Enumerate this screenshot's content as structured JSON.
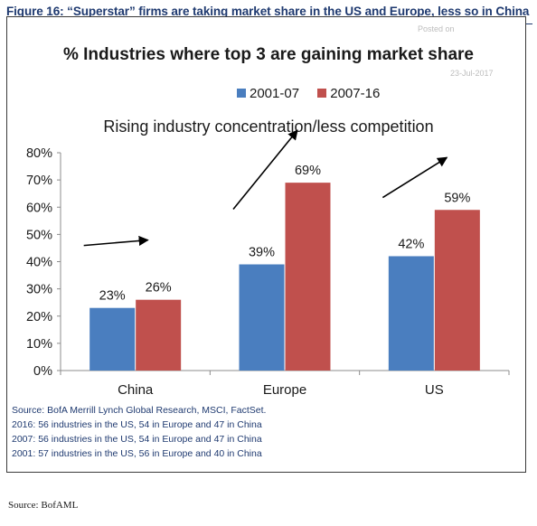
{
  "figure_title": "Figure 16: “Superstar” firms are taking market share in the US and Europe, less so in China",
  "watermark": {
    "posted": "Posted on",
    "date": "23-Jul-2017"
  },
  "chart_data": {
    "type": "bar",
    "title": "% Industries where top 3 are gaining market share",
    "subtitle": "Rising industry concentration/less competition",
    "categories": [
      "China",
      "Europe",
      "US"
    ],
    "series": [
      {
        "name": "2001-07",
        "color": "#4a7ebf",
        "values": [
          23,
          39,
          42
        ],
        "labels": [
          "23%",
          "39%",
          "42%"
        ]
      },
      {
        "name": "2007-16",
        "color": "#c0504d",
        "values": [
          26,
          69,
          59
        ],
        "labels": [
          "26%",
          "69%",
          "59%"
        ]
      }
    ],
    "yticks": [
      "0%",
      "10%",
      "20%",
      "30%",
      "40%",
      "50%",
      "60%",
      "70%",
      "80%"
    ],
    "ylim": [
      0,
      80
    ],
    "legend": "top",
    "grid": false,
    "annotations": "upward arrows above each group"
  },
  "notes": [
    "Source: BofA Merrill Lynch Global Research, MSCI, FactSet.",
    "2016: 56 industries in the US, 54 in Europe and 47 in China",
    "2007: 56 industries in the US, 54 in Europe and 47 in China",
    "2001: 57 industries in the US, 56 in Europe and 40 in China"
  ],
  "outer_source": "Source: BofAML"
}
